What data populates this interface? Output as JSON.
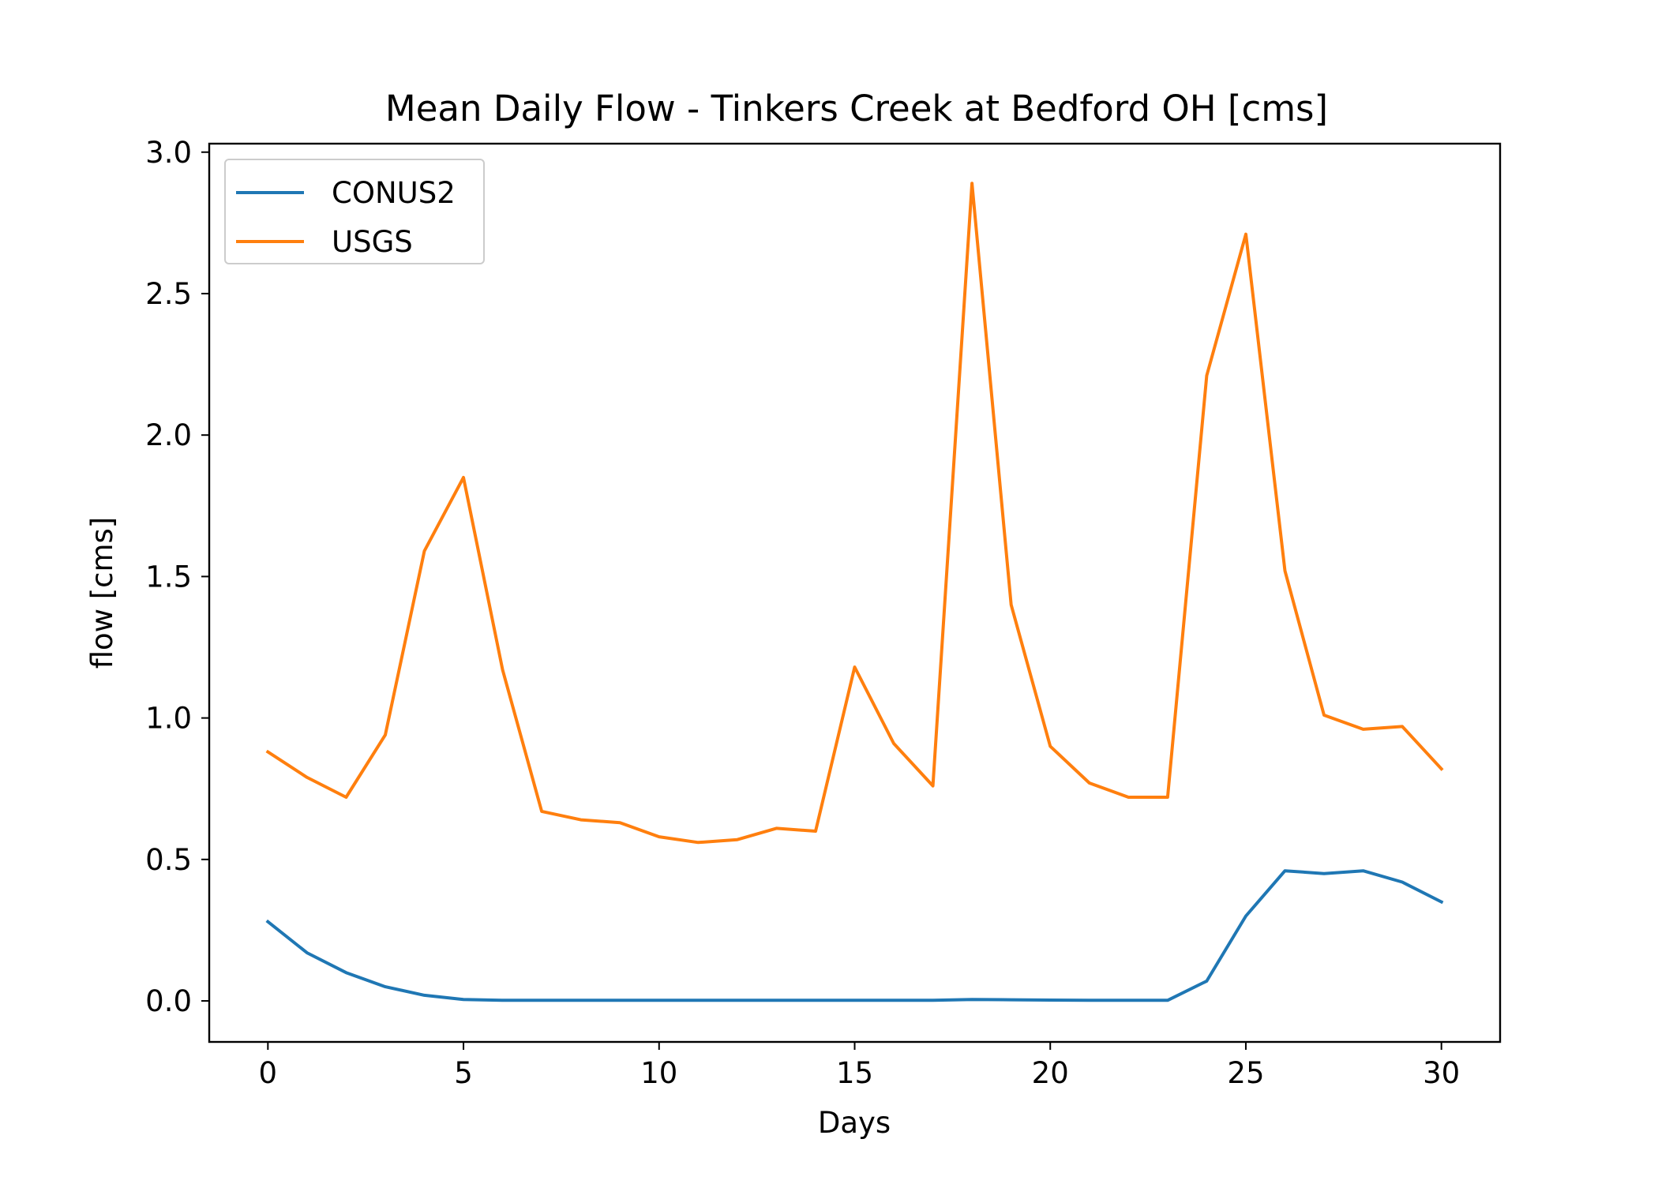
{
  "chart_data": {
    "type": "line",
    "title": "Mean Daily Flow - Tinkers Creek at Bedford OH [cms]",
    "xlabel": "Days",
    "ylabel": "flow [cms]",
    "xlim": [
      -1.5,
      31.5
    ],
    "ylim": [
      -0.145,
      3.03
    ],
    "xticks": [
      0,
      5,
      10,
      15,
      20,
      25,
      30
    ],
    "xtick_labels": [
      "0",
      "5",
      "10",
      "15",
      "20",
      "25",
      "30"
    ],
    "yticks": [
      0.0,
      0.5,
      1.0,
      1.5,
      2.0,
      2.5,
      3.0
    ],
    "ytick_labels": [
      "0.0",
      "0.5",
      "1.0",
      "1.5",
      "2.0",
      "2.5",
      "3.0"
    ],
    "grid": false,
    "legend_position": "upper-left",
    "x": [
      0,
      1,
      2,
      3,
      4,
      5,
      6,
      7,
      8,
      9,
      10,
      11,
      12,
      13,
      14,
      15,
      16,
      17,
      18,
      19,
      20,
      21,
      22,
      23,
      24,
      25,
      26,
      27,
      28,
      29,
      30
    ],
    "series": [
      {
        "name": "CONUS2",
        "color": "#1f77b4",
        "values": [
          0.28,
          0.17,
          0.1,
          0.05,
          0.02,
          0.005,
          0.002,
          0.002,
          0.002,
          0.002,
          0.002,
          0.002,
          0.002,
          0.002,
          0.002,
          0.002,
          0.002,
          0.002,
          0.005,
          0.004,
          0.003,
          0.002,
          0.002,
          0.002,
          0.07,
          0.3,
          0.46,
          0.45,
          0.46,
          0.42,
          0.35
        ]
      },
      {
        "name": "USGS",
        "color": "#ff7f0e",
        "values": [
          0.88,
          0.79,
          0.72,
          0.94,
          1.59,
          1.85,
          1.17,
          0.67,
          0.64,
          0.63,
          0.58,
          0.56,
          0.57,
          0.61,
          0.6,
          1.18,
          0.91,
          0.76,
          2.89,
          1.4,
          0.9,
          0.77,
          0.72,
          0.72,
          2.21,
          2.71,
          1.52,
          1.01,
          0.96,
          0.97,
          0.82
        ]
      }
    ]
  }
}
